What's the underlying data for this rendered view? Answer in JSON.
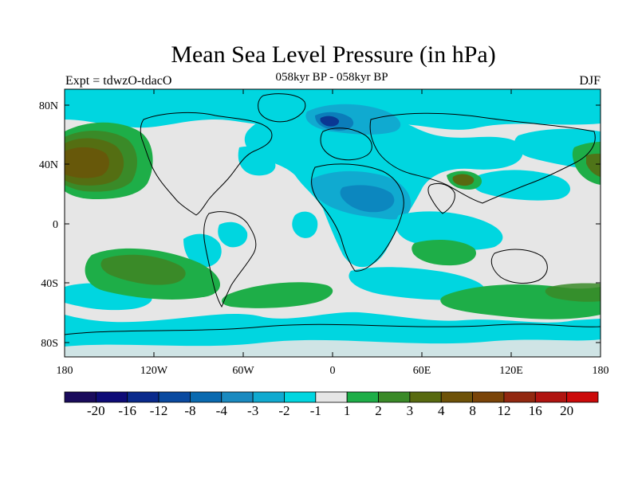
{
  "header": {
    "title": "Mean Sea Level Pressure (in hPa)",
    "subtitle": "058kyr BP - 058kyr BP",
    "experiment": "Expt = tdwzO-tdacO",
    "season": "DJF"
  },
  "axes": {
    "lon_ticks": [
      "180",
      "120W",
      "60W",
      "0",
      "60E",
      "120E",
      "180"
    ],
    "lat_ticks": [
      "80N",
      "40N",
      "0",
      "40S",
      "80S"
    ]
  },
  "colorbar": {
    "colors": [
      "#1a0b5c",
      "#0e0b77",
      "#0a2a8c",
      "#0a4aa0",
      "#0a6ab0",
      "#1a8ac0",
      "#10aad0",
      "#00d6e0",
      "#e6e6e6",
      "#1eae48",
      "#3a8a28",
      "#586a10",
      "#6e5208",
      "#7a4408",
      "#922810",
      "#b01410",
      "#cc0a0a"
    ],
    "labels": [
      "-20",
      "-16",
      "-12",
      "-8",
      "-4",
      "-3",
      "-2",
      "-1",
      "1",
      "2",
      "3",
      "4",
      "8",
      "12",
      "16",
      "20"
    ]
  },
  "palette": {
    "ocean_neutral": "#e6e6e6",
    "cyan": "#00d6e0",
    "light_blue": "#10aad0",
    "mid_blue": "#1a8ac0",
    "blue": "#0a6ab0",
    "deep_blue": "#0a4aa0",
    "green": "#1eae48",
    "dark_green": "#3a8a28",
    "olive": "#586a10",
    "brown": "#6e5208"
  }
}
